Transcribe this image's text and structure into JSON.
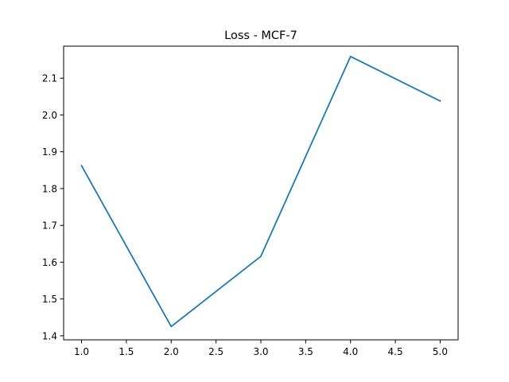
{
  "chart_data": {
    "type": "line",
    "title": "Loss - MCF-7",
    "xlabel": "",
    "ylabel": "",
    "x": [
      1.0,
      2.0,
      3.0,
      4.0,
      5.0
    ],
    "series": [
      {
        "values": [
          1.862,
          1.425,
          1.616,
          2.159,
          2.038
        ],
        "color": "#1f77b4"
      }
    ],
    "xlim": [
      0.8,
      5.2
    ],
    "ylim": [
      1.389,
      2.187
    ],
    "xticks": [
      1.0,
      1.5,
      2.0,
      2.5,
      3.0,
      3.5,
      4.0,
      4.5,
      5.0
    ],
    "xtick_labels": [
      "1.0",
      "1.5",
      "2.0",
      "2.5",
      "3.0",
      "3.5",
      "4.0",
      "4.5",
      "5.0"
    ],
    "yticks": [
      1.4,
      1.5,
      1.6,
      1.7,
      1.8,
      1.9,
      2.0,
      2.1
    ],
    "ytick_labels": [
      "1.4",
      "1.5",
      "1.6",
      "1.7",
      "1.8",
      "1.9",
      "2.0",
      "2.1"
    ],
    "grid": false,
    "legend": "none"
  }
}
